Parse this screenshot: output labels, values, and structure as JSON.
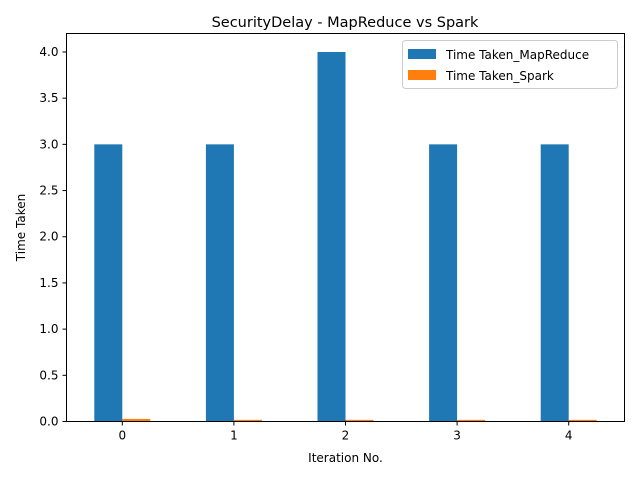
{
  "chart_data": {
    "type": "bar",
    "title": "SecurityDelay - MapReduce vs Spark",
    "xlabel": "Iteration No.",
    "ylabel": "Time Taken",
    "categories": [
      "0",
      "1",
      "2",
      "3",
      "4"
    ],
    "series": [
      {
        "name": "Time Taken_MapReduce",
        "color": "#1f77b4",
        "values": [
          3.0,
          3.0,
          4.0,
          3.0,
          3.0
        ]
      },
      {
        "name": "Time Taken_Spark",
        "color": "#ff7f0e",
        "values": [
          0.028,
          0.018,
          0.018,
          0.018,
          0.018
        ]
      }
    ],
    "ylim": [
      0,
      4.2
    ],
    "yticks": [
      "0.0",
      "0.5",
      "1.0",
      "1.5",
      "2.0",
      "2.5",
      "3.0",
      "3.5",
      "4.0"
    ],
    "grid": false,
    "legend_position": "top-right"
  }
}
